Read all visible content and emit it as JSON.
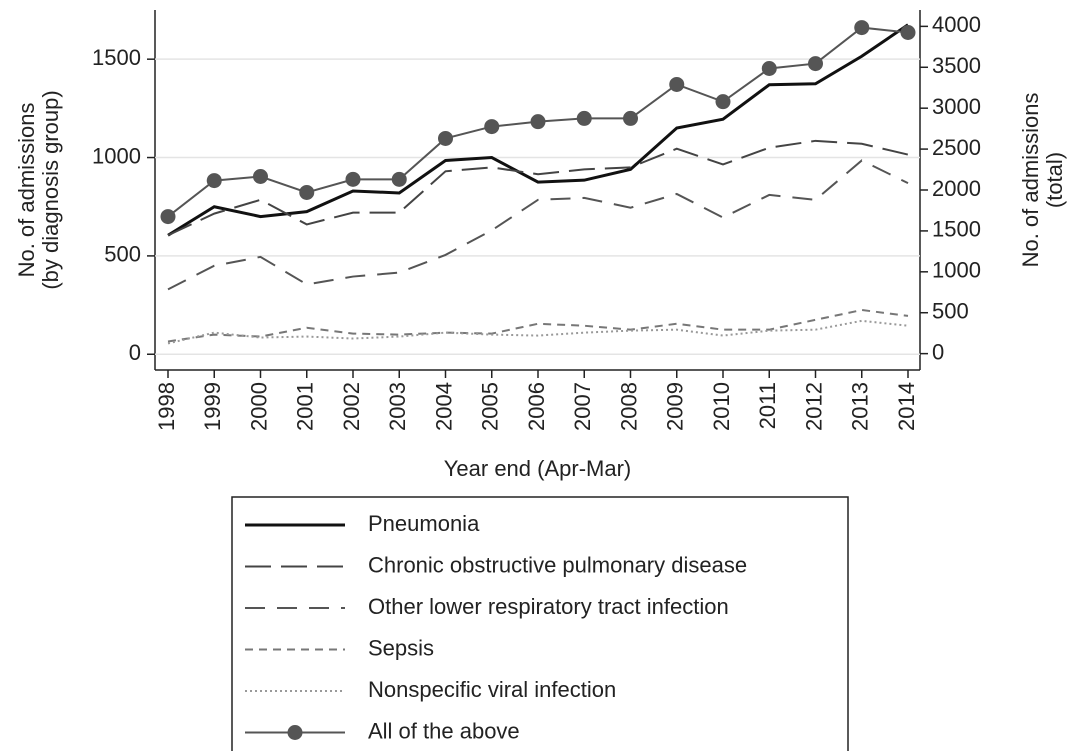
{
  "chart_data": {
    "type": "line",
    "ylabel": [
      "No. of admissions",
      "(by diagnosis group)"
    ],
    "y2label": [
      "No. of admissions",
      "(total)"
    ],
    "xlabel": "Year end (Apr-Mar)",
    "categories": [
      "1998",
      "1999",
      "2000",
      "2001",
      "2002",
      "2003",
      "2004",
      "2005",
      "2006",
      "2007",
      "2008",
      "2009",
      "2010",
      "2011",
      "2012",
      "2013",
      "2014"
    ],
    "ylim": [
      -80,
      1750
    ],
    "yticks": [
      0,
      500,
      1000,
      1500
    ],
    "y2lim": [
      -200,
      4200
    ],
    "y2ticks": [
      0,
      500,
      1000,
      1500,
      2000,
      2500,
      3000,
      3500,
      4000
    ],
    "grid": true,
    "series": [
      {
        "name": "Pneumonia",
        "color": "#111111",
        "width": 3,
        "dash": "none",
        "values": [
          605,
          750,
          700,
          725,
          830,
          820,
          985,
          1000,
          875,
          885,
          940,
          1150,
          1195,
          1370,
          1375,
          1515,
          1675
        ]
      },
      {
        "name": "Chronic obstructive pulmonary disease",
        "color": "#444444",
        "width": 2,
        "dash": "26 10",
        "values": [
          605,
          715,
          785,
          660,
          720,
          720,
          930,
          950,
          915,
          940,
          950,
          1045,
          965,
          1050,
          1085,
          1070,
          1015
        ]
      },
      {
        "name": "Other lower respiratory tract infection",
        "color": "#555555",
        "width": 2,
        "dash": "20 12",
        "values": [
          330,
          450,
          495,
          355,
          395,
          415,
          505,
          630,
          785,
          795,
          745,
          815,
          695,
          810,
          785,
          985,
          870
        ]
      },
      {
        "name": "Sepsis",
        "color": "#777777",
        "width": 2,
        "dash": "8 6",
        "values": [
          65,
          100,
          90,
          135,
          105,
          100,
          110,
          105,
          155,
          145,
          125,
          155,
          125,
          125,
          175,
          225,
          195
        ]
      },
      {
        "name": "Nonspecific viral infection",
        "color": "#999999",
        "width": 2,
        "dash": "2 3",
        "values": [
          55,
          110,
          85,
          90,
          80,
          90,
          110,
          100,
          95,
          110,
          120,
          125,
          95,
          120,
          125,
          170,
          145
        ]
      },
      {
        "name": "All of the above",
        "color": "#555555",
        "width": 2,
        "dash": "none",
        "marker": "circle",
        "axis": "y2",
        "values": [
          1675,
          2115,
          2165,
          1970,
          2130,
          2130,
          2630,
          2775,
          2835,
          2875,
          2875,
          3290,
          3080,
          3485,
          3545,
          3985,
          3925
        ]
      }
    ]
  }
}
